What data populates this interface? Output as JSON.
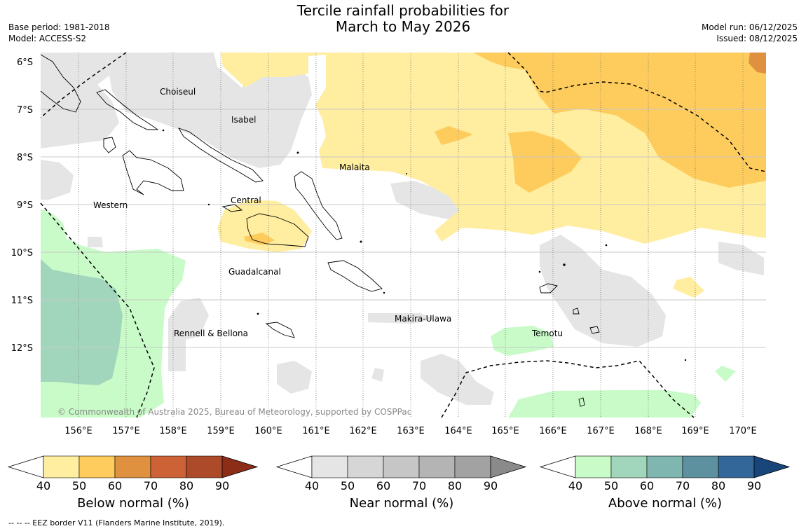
{
  "header": {
    "title_line1": "Tercile rainfall probabilities for",
    "title_line2": "March to May 2026",
    "base_period": "Base period: 1981-2018",
    "model": "Model: ACCESS-S2",
    "model_run": "Model run: 06/12/2025",
    "issued": "Issued: 08/12/2025"
  },
  "map": {
    "copyright": "© Commonwealth of Australia 2025, Bureau of Meteorology, supported by COSPPac",
    "lat_labels": [
      "6°S",
      "7°S",
      "8°S",
      "9°S",
      "10°S",
      "11°S",
      "12°S"
    ],
    "lon_labels": [
      "156°E",
      "157°E",
      "158°E",
      "159°E",
      "160°E",
      "161°E",
      "162°E",
      "163°E",
      "164°E",
      "165°E",
      "166°E",
      "167°E",
      "168°E",
      "169°E",
      "170°E"
    ],
    "places": {
      "choiseul": "Choiseul",
      "isabel": "Isabel",
      "malaita": "Malaita",
      "western": "Western",
      "central": "Central",
      "guadalcanal": "Guadalcanal",
      "rennell": "Rennell & Bellona",
      "makira": "Makira-Ulawa",
      "temotu": "Temotu"
    }
  },
  "legends": {
    "below": {
      "title": "Below normal (%)",
      "ticks": [
        "40",
        "50",
        "60",
        "70",
        "80",
        "90"
      ],
      "colors": [
        "#ffeda0",
        "#fecc5c",
        "#e09140",
        "#cd6236",
        "#ad4a2a",
        "#8c2d18"
      ]
    },
    "near": {
      "title": "Near normal (%)",
      "ticks": [
        "40",
        "50",
        "60",
        "70",
        "80",
        "90"
      ],
      "colors": [
        "#e5e5e5",
        "#d6d6d6",
        "#c6c6c6",
        "#b4b4b4",
        "#a2a2a2",
        "#8a8a8a"
      ]
    },
    "above": {
      "title": "Above normal (%)",
      "ticks": [
        "40",
        "50",
        "60",
        "70",
        "80",
        "90"
      ],
      "colors": [
        "#c8fbc8",
        "#a2d6bc",
        "#7fb6b0",
        "#5e91a0",
        "#336699",
        "#18467a"
      ]
    }
  },
  "footer": {
    "eez": "--  --  -- EEZ border V11 (Flanders Marine Institute, 2019)."
  }
}
